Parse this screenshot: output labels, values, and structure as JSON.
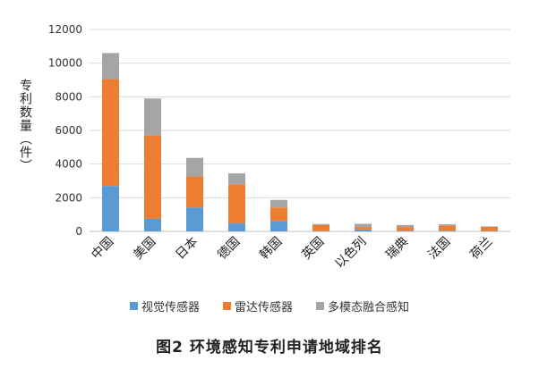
{
  "chart_data": {
    "type": "bar",
    "stacked": true,
    "title": "",
    "caption": "图2  环境感知专利申请地域排名",
    "ylabel": "专利数量（件）",
    "xlabel": "",
    "ylim": [
      0,
      12000
    ],
    "yticks": [
      0,
      2000,
      4000,
      6000,
      8000,
      10000,
      12000
    ],
    "grid": true,
    "legend_position": "bottom",
    "categories": [
      "中国",
      "美国",
      "日本",
      "德国",
      "韩国",
      "英国",
      "以色列",
      "瑞典",
      "法国",
      "荷兰"
    ],
    "series": [
      {
        "name": "视觉传感器",
        "color": "#5b9bd5",
        "values": [
          2700,
          750,
          1420,
          500,
          620,
          20,
          120,
          40,
          40,
          20
        ]
      },
      {
        "name": "雷达传感器",
        "color": "#ed7d31",
        "values": [
          6350,
          4950,
          1850,
          2300,
          800,
          360,
          140,
          220,
          300,
          250
        ]
      },
      {
        "name": "多模态融合感知",
        "color": "#a5a5a5",
        "values": [
          1550,
          2200,
          1100,
          650,
          450,
          60,
          190,
          120,
          80,
          30
        ]
      }
    ]
  }
}
